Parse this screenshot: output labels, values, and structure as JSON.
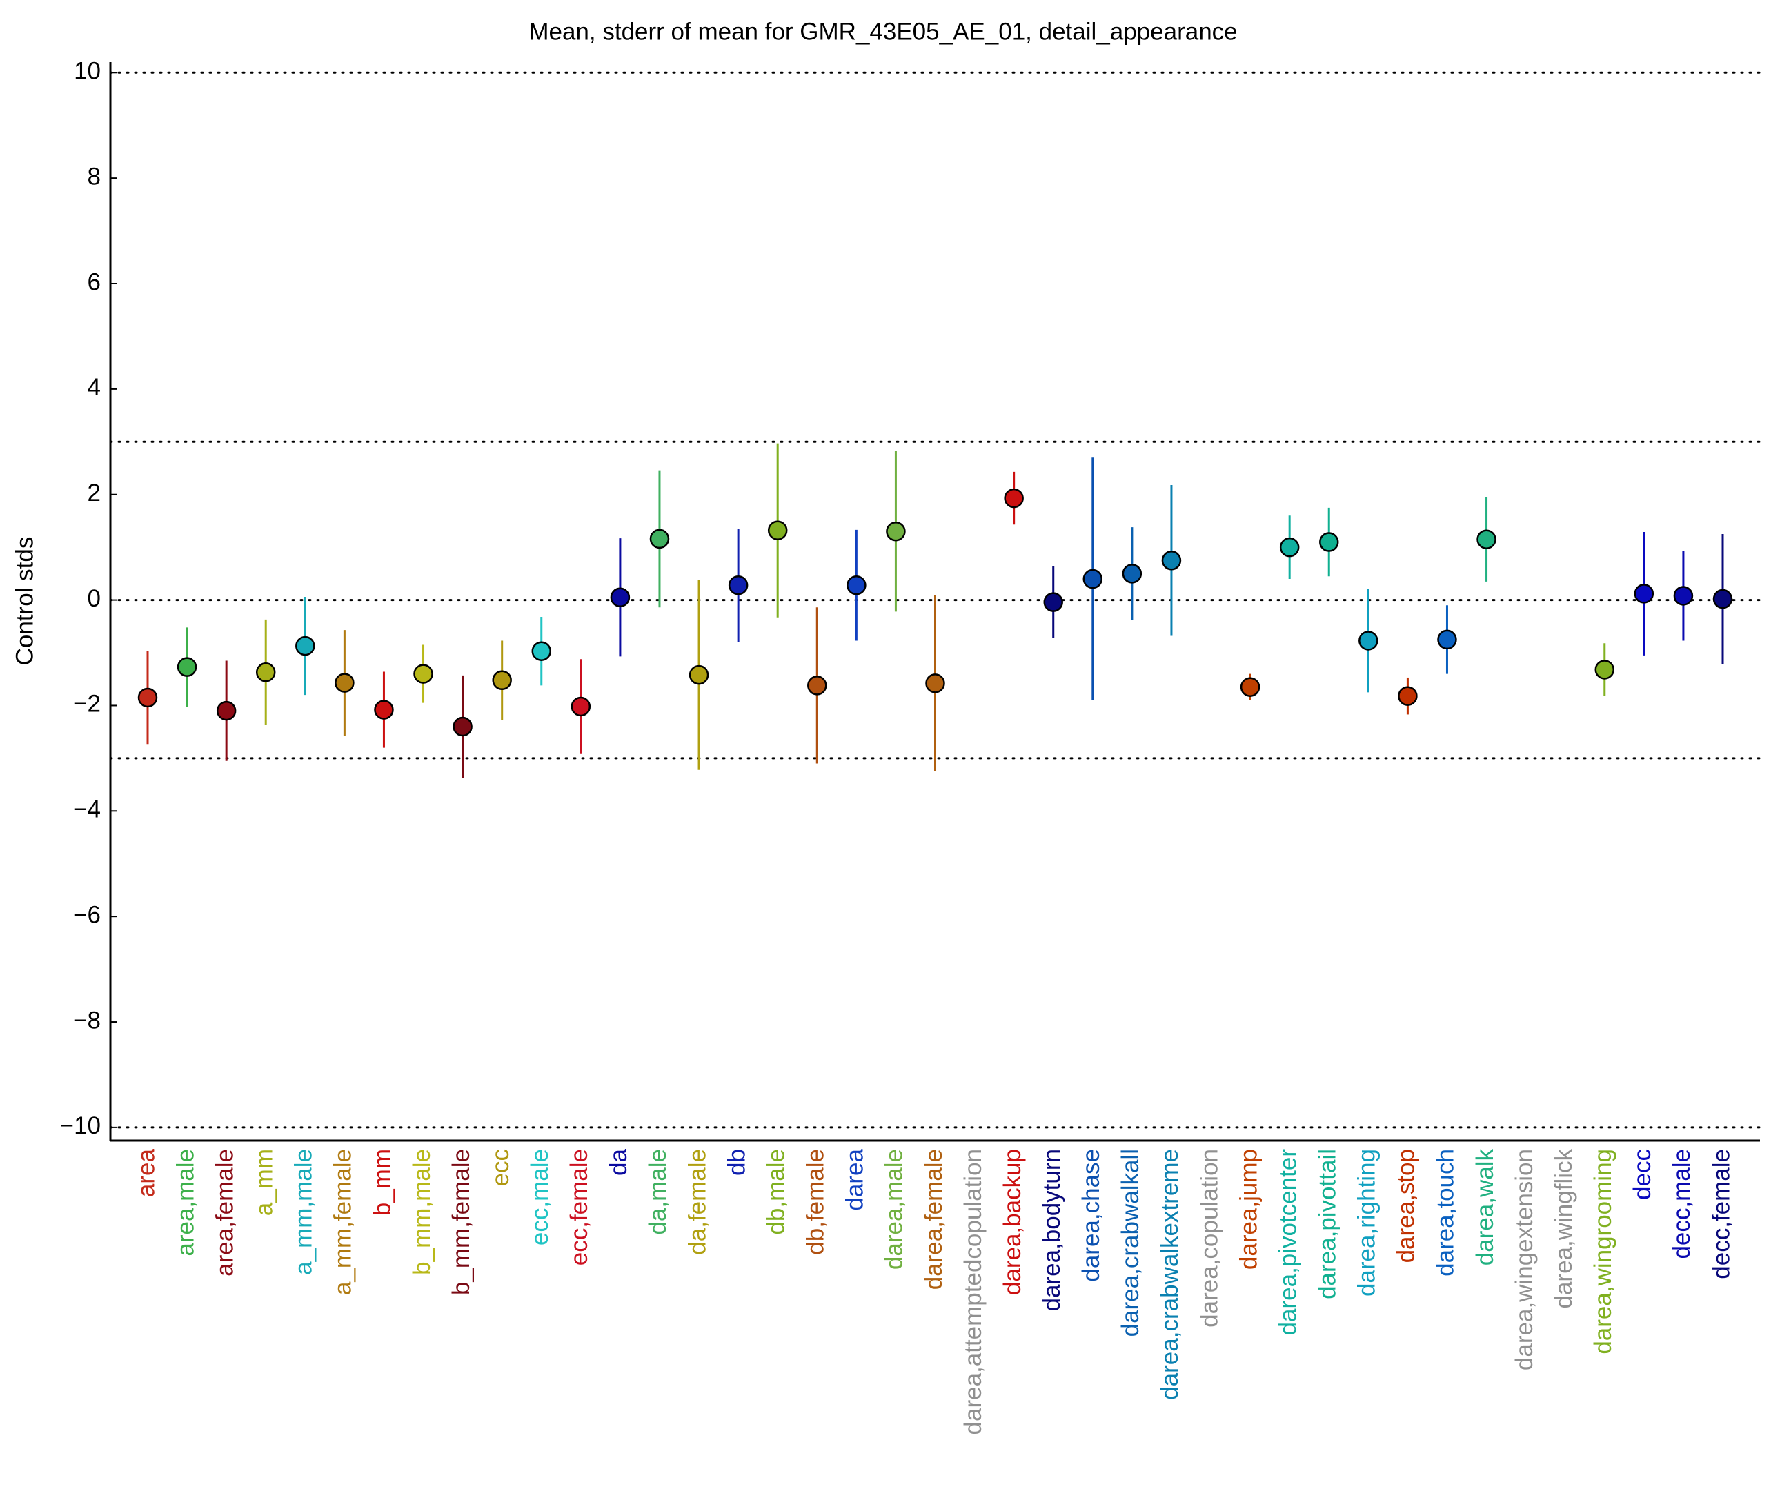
{
  "chart_data": {
    "type": "errorbar",
    "title": "Mean, stderr of mean for GMR_43E05_AE_01, detail_appearance",
    "y_label": "Control stds",
    "categories": [
      "area",
      "area,male",
      "area,female",
      "a_mm",
      "a_mm,male",
      "a_mm,female",
      "b_mm",
      "b_mm,male",
      "b_mm,female",
      "ecc",
      "ecc,male",
      "ecc,female",
      "da",
      "da,male",
      "da,female",
      "db",
      "db,male",
      "db,female",
      "darea",
      "darea,male",
      "darea,female",
      "darea,attemptedcopulation",
      "darea,backup",
      "darea,bodyturn",
      "darea,chase",
      "darea,crabwalkall",
      "darea,crabwalkextreme",
      "darea,copulation",
      "darea,jump",
      "darea,pivotcenter",
      "darea,pivottail",
      "darea,righting",
      "darea,stop",
      "darea,touch",
      "darea,walk",
      "darea,wingextension",
      "darea,wingflick",
      "darea,wingrooming",
      "decc",
      "decc,male",
      "decc,female"
    ],
    "values": [
      -1.85,
      -1.27,
      -2.1,
      -1.37,
      -0.87,
      -1.57,
      -2.08,
      -1.4,
      -2.4,
      -1.52,
      -0.97,
      -2.02,
      0.05,
      1.16,
      -1.42,
      0.28,
      1.32,
      -1.62,
      0.28,
      1.3,
      -1.58,
      null,
      1.93,
      -0.04,
      0.4,
      0.5,
      0.75,
      null,
      -1.65,
      1.0,
      1.1,
      -0.77,
      -1.82,
      -0.75,
      1.15,
      null,
      null,
      -1.32,
      0.12,
      0.08,
      0.02
    ],
    "errors": [
      0.88,
      0.75,
      0.95,
      1.0,
      0.93,
      1.0,
      0.72,
      0.55,
      0.97,
      0.75,
      0.65,
      0.9,
      1.12,
      1.3,
      1.8,
      1.07,
      1.65,
      1.48,
      1.05,
      1.52,
      1.67,
      null,
      0.5,
      0.68,
      2.3,
      0.88,
      1.43,
      null,
      0.25,
      0.6,
      0.65,
      0.98,
      0.35,
      0.65,
      0.8,
      null,
      null,
      0.5,
      1.17,
      0.85,
      1.23
    ],
    "colors": [
      "#c42a1a",
      "#3cb04a",
      "#8b0a14",
      "#a6b018",
      "#18aab8",
      "#b07a10",
      "#cc1010",
      "#b8b818",
      "#7a0a14",
      "#b09810",
      "#20c4c4",
      "#cc1020",
      "#0a0aa0",
      "#40b060",
      "#b0a010",
      "#1020b0",
      "#80b020",
      "#b05010",
      "#1040c0",
      "#70b040",
      "#b06010",
      "#909090",
      "#cc1010",
      "#08087a",
      "#0a50b0",
      "#0a60b0",
      "#0a80b0",
      "#909090",
      "#c04000",
      "#10b0a0",
      "#10b090",
      "#10a0c0",
      "#c03000",
      "#0a60c0",
      "#20b080",
      "#909090",
      "#909090",
      "#80b020",
      "#0a0ac0",
      "#0a0ab0",
      "#08087a"
    ],
    "ylim": [
      -10.25,
      10.2
    ],
    "yticks": [
      {
        "value": -10,
        "label": "−10"
      },
      {
        "value": -8,
        "label": "−8"
      },
      {
        "value": -6,
        "label": "−6"
      },
      {
        "value": -4,
        "label": "−4"
      },
      {
        "value": -2,
        "label": "−2"
      },
      0,
      2,
      4,
      6,
      8,
      10
    ],
    "reference_lines": [
      -10,
      -3,
      0,
      3,
      10
    ]
  }
}
